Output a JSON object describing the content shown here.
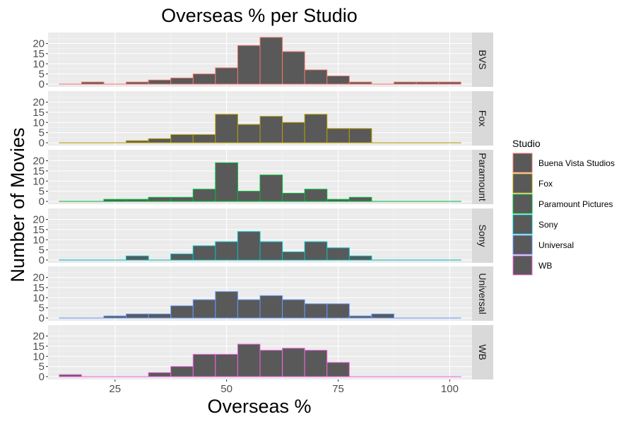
{
  "chart_data": {
    "type": "bar",
    "subtype": "faceted-histogram",
    "title": "Overseas % per Studio",
    "xlabel": "Overseas %",
    "ylabel": "Number of Movies",
    "xlim": [
      10,
      105
    ],
    "ylim": [
      0,
      24
    ],
    "x_ticks": [
      25,
      50,
      75,
      100
    ],
    "y_ticks": [
      0,
      5,
      10,
      15,
      20
    ],
    "bin_width": 5,
    "bin_start": 12.5,
    "bin_count": 18,
    "grid": true,
    "legend": {
      "title": "Studio",
      "placement": "right",
      "entries": [
        "Buena Vista Studios",
        "Fox",
        "Paramount Pictures",
        "Sony",
        "Universal",
        "WB"
      ]
    },
    "bar_fill": "#595959",
    "panel_background": "#ebebeb",
    "strip_background": "#d9d9d9",
    "series": [
      {
        "name": "Buena Vista Studios",
        "strip": "BVS",
        "color": "#F8766D",
        "values": [
          0,
          1,
          0,
          1,
          2,
          3,
          5,
          8,
          19,
          23,
          16,
          7,
          4,
          1,
          0,
          1,
          1,
          1
        ]
      },
      {
        "name": "Fox",
        "strip": "Fox",
        "color": "#B79F00",
        "values": [
          0,
          0,
          0,
          1,
          2,
          4,
          4,
          14,
          9,
          13,
          10,
          14,
          7,
          7,
          0,
          0,
          0,
          0
        ]
      },
      {
        "name": "Paramount Pictures",
        "strip": "Paramount",
        "color": "#00BA38",
        "values": [
          0,
          0,
          1,
          1,
          2,
          2,
          6,
          19,
          5,
          13,
          4,
          6,
          1,
          2,
          0,
          0,
          0,
          0
        ]
      },
      {
        "name": "Sony",
        "strip": "Sony",
        "color": "#00BFC4",
        "values": [
          0,
          0,
          0,
          2,
          0,
          3,
          7,
          9,
          14,
          9,
          4,
          9,
          6,
          2,
          0,
          0,
          0,
          0
        ]
      },
      {
        "name": "Universal",
        "strip": "Universal",
        "color": "#619CFF",
        "values": [
          0,
          0,
          1,
          2,
          2,
          6,
          9,
          13,
          9,
          11,
          9,
          7,
          7,
          1,
          2,
          0,
          0,
          0
        ]
      },
      {
        "name": "WB",
        "strip": "WB",
        "color": "#F564E3",
        "values": [
          1,
          0,
          0,
          0,
          2,
          5,
          11,
          11,
          16,
          13,
          14,
          13,
          7,
          0,
          0,
          0,
          0,
          0
        ]
      }
    ]
  }
}
